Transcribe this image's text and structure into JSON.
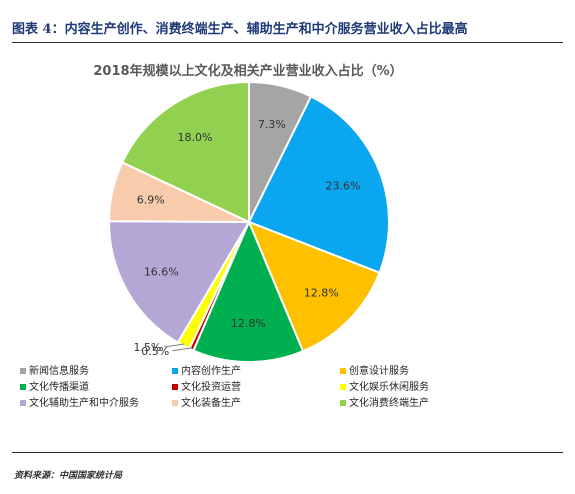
{
  "figure_title": "图表 4：内容生产创作、消费终端生产、辅助生产和中介服务营业收入占比最高",
  "source": "资料来源：中国国家统计局",
  "chart_data": {
    "type": "pie",
    "title": "2018年规模以上文化及相关产业营业收入占比（%）",
    "start_angle": "12 o'clock",
    "direction": "clockwise",
    "legend_position": "bottom",
    "slices": [
      {
        "label": "新闻信息服务",
        "value": 7.3,
        "value_label": "7.3%",
        "color": "#a5a5a5"
      },
      {
        "label": "内容创作生产",
        "value": 23.6,
        "value_label": "23.6%",
        "color": "#0ba6f0"
      },
      {
        "label": "创意设计服务",
        "value": 12.8,
        "value_label": "12.8%",
        "color": "#ffc000"
      },
      {
        "label": "文化传播渠道",
        "value": 12.8,
        "value_label": "12.8%",
        "color": "#00b050"
      },
      {
        "label": "文化投资运营",
        "value": 0.5,
        "value_label": "0.5%",
        "color": "#c00000"
      },
      {
        "label": "文化娱乐休闲服务",
        "value": 1.5,
        "value_label": "1.5%",
        "color": "#ffff00"
      },
      {
        "label": "文化辅助生产和中介服务",
        "value": 16.6,
        "value_label": "16.6%",
        "color": "#b4a7d6"
      },
      {
        "label": "文化装备生产",
        "value": 6.9,
        "value_label": "6.9%",
        "color": "#f8cbad"
      },
      {
        "label": "文化消费终端生产",
        "value": 18.0,
        "value_label": "18.0%",
        "color": "#92d050"
      }
    ]
  }
}
